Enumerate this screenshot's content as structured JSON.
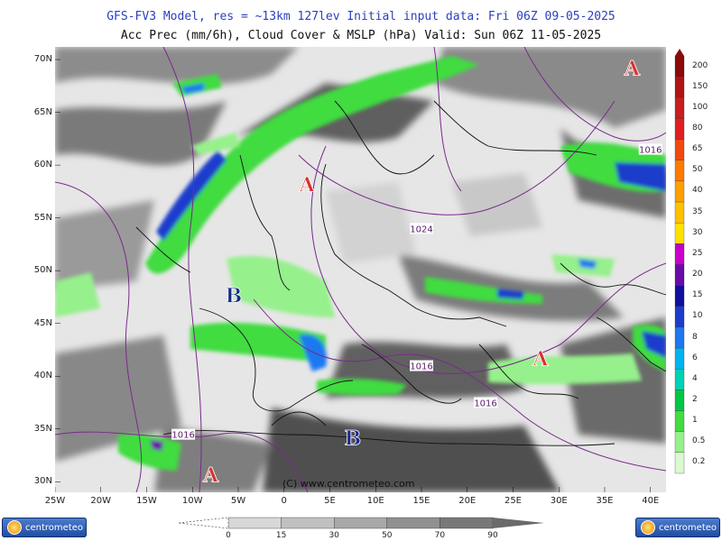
{
  "header": {
    "line1": "GFS-FV3 Model, res = ~13km 127lev   Initial input data: Fri 06Z 09-05-2025",
    "line2": "Acc Prec (mm/6h), Cloud Cover & MSLP (hPa)  Valid: Sun 06Z 11-05-2025"
  },
  "axes": {
    "lat_labels": [
      "70N",
      "65N",
      "60N",
      "55N",
      "50N",
      "45N",
      "40N",
      "35N",
      "30N"
    ],
    "lon_labels": [
      "25W",
      "20W",
      "15W",
      "10W",
      "5W",
      "0",
      "5E",
      "10E",
      "15E",
      "20E",
      "25E",
      "30E",
      "35E",
      "40E"
    ]
  },
  "precip_scale": {
    "labels": [
      "200",
      "150",
      "100",
      "80",
      "65",
      "50",
      "40",
      "35",
      "30",
      "25",
      "20",
      "15",
      "10",
      "8",
      "6",
      "4",
      "2",
      "1",
      "0.5",
      "0.2"
    ],
    "colors": [
      "#8b0a0a",
      "#b01414",
      "#c81e1e",
      "#e02020",
      "#f04a10",
      "#ff7a00",
      "#ff9f00",
      "#ffc000",
      "#ffe100",
      "#c800c8",
      "#6a0aa8",
      "#1010a0",
      "#1e3ccc",
      "#1e78f0",
      "#00b4f0",
      "#00d2b4",
      "#00c846",
      "#40dc40",
      "#96f08c",
      "#dcfad2"
    ]
  },
  "cloud_scale": {
    "labels": [
      "0",
      "15",
      "30",
      "50",
      "70",
      "90"
    ],
    "colors": [
      "#ffffff",
      "#d8d8d8",
      "#c0c0c0",
      "#a8a8a8",
      "#909090",
      "#787878"
    ]
  },
  "map": {
    "watermark": "(C) www.centrometeo.com",
    "isobar_labels": [
      {
        "text": "1016",
        "lon": 40,
        "lat": 61.5
      },
      {
        "text": "1024",
        "lon": 15,
        "lat": 54
      },
      {
        "text": "1016",
        "lon": 15,
        "lat": 41
      },
      {
        "text": "1016",
        "lon": 22,
        "lat": 37.5
      },
      {
        "text": "1016",
        "lon": -11,
        "lat": 34.5
      }
    ],
    "pressure_centers": [
      {
        "type": "A",
        "lon": 2.5,
        "lat": 57.5,
        "color": "#d93030"
      },
      {
        "type": "A",
        "lon": 38,
        "lat": 68.5,
        "color": "#d93030"
      },
      {
        "type": "A",
        "lon": 28,
        "lat": 41,
        "color": "#d93030"
      },
      {
        "type": "A",
        "lon": -8,
        "lat": 30,
        "color": "#d93030"
      },
      {
        "type": "B",
        "lon": -5.5,
        "lat": 47,
        "color": "#1b2a8a"
      },
      {
        "type": "B",
        "lon": 7.5,
        "lat": 33.5,
        "color": "#1b2a8a"
      }
    ],
    "colors": {
      "land_outline": "#111111",
      "isobar": "#7a2a8a",
      "sea_clear": "#ffffff"
    }
  },
  "logos": {
    "left": "centrometeo",
    "right": "centrometeo"
  }
}
